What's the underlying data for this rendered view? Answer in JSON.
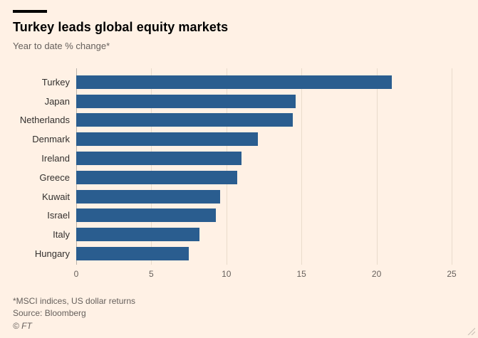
{
  "header": {
    "title": "Turkey leads global equity markets",
    "subtitle": "Year to date % change*"
  },
  "chart_data": {
    "type": "bar",
    "orientation": "horizontal",
    "title": "Turkey leads global equity markets",
    "subtitle": "Year to date % change*",
    "categories": [
      "Turkey",
      "Japan",
      "Netherlands",
      "Denmark",
      "Ireland",
      "Greece",
      "Kuwait",
      "Israel",
      "Italy",
      "Hungary"
    ],
    "values": [
      21.0,
      14.6,
      14.4,
      12.1,
      11.0,
      10.7,
      9.6,
      9.3,
      8.2,
      7.5
    ],
    "xlabel": "",
    "ylabel": "",
    "xlim": [
      0,
      25
    ],
    "xticks": [
      0,
      5,
      10,
      15,
      20,
      25
    ],
    "grid": "vertical",
    "legend": "none",
    "bar_color": "#2a5d8f"
  },
  "colors": {
    "background": "#fff1e5",
    "bar": "#2a5d8f",
    "gridline": "#e9dbcb",
    "muted_text": "#66605c"
  },
  "footer": {
    "footnote": "*MSCI indices, US dollar returns",
    "source": "Source: Bloomberg",
    "credit": "© FT"
  }
}
